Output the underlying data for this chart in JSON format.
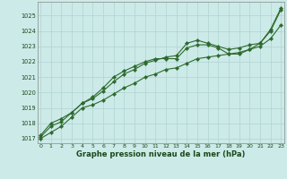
{
  "hours": [
    0,
    1,
    2,
    3,
    4,
    5,
    6,
    7,
    8,
    9,
    10,
    11,
    12,
    13,
    14,
    15,
    16,
    17,
    18,
    19,
    20,
    21,
    22,
    23
  ],
  "line1": [
    1017.1,
    1017.8,
    1018.1,
    1018.7,
    1019.3,
    1019.6,
    1020.1,
    1020.7,
    1021.2,
    1021.5,
    1021.9,
    1022.1,
    1022.3,
    1022.4,
    1023.2,
    1023.4,
    1023.2,
    1023.0,
    1022.8,
    1022.9,
    1023.1,
    1023.2,
    1024.1,
    1025.5
  ],
  "line2": [
    1017.0,
    1017.4,
    1017.8,
    1018.4,
    1019.0,
    1019.2,
    1019.5,
    1019.9,
    1020.3,
    1020.6,
    1021.0,
    1021.2,
    1021.5,
    1021.6,
    1021.9,
    1022.2,
    1022.3,
    1022.4,
    1022.5,
    1022.6,
    1022.8,
    1023.0,
    1023.5,
    1024.4
  ],
  "line3": [
    1017.2,
    1018.0,
    1018.3,
    1018.7,
    1019.3,
    1019.7,
    1020.3,
    1021.0,
    1021.4,
    1021.7,
    1022.0,
    1022.2,
    1022.2,
    1022.2,
    1022.9,
    1023.1,
    1023.1,
    1022.9,
    1022.5,
    1022.5,
    1022.8,
    1023.2,
    1024.0,
    1025.4
  ],
  "bg_color": "#cceae8",
  "grid_color": "#aed4d2",
  "line_color": "#2d6a2d",
  "axis_label_color": "#1a4a1a",
  "ylabel_ticks": [
    1017,
    1018,
    1019,
    1020,
    1021,
    1022,
    1023,
    1024,
    1025
  ],
  "ylim": [
    1016.7,
    1025.9
  ],
  "xlim": [
    -0.3,
    23.3
  ],
  "xlabel": "Graphe pression niveau de la mer (hPa)",
  "marker": "D",
  "marker_size": 2.2,
  "line_width": 0.8
}
